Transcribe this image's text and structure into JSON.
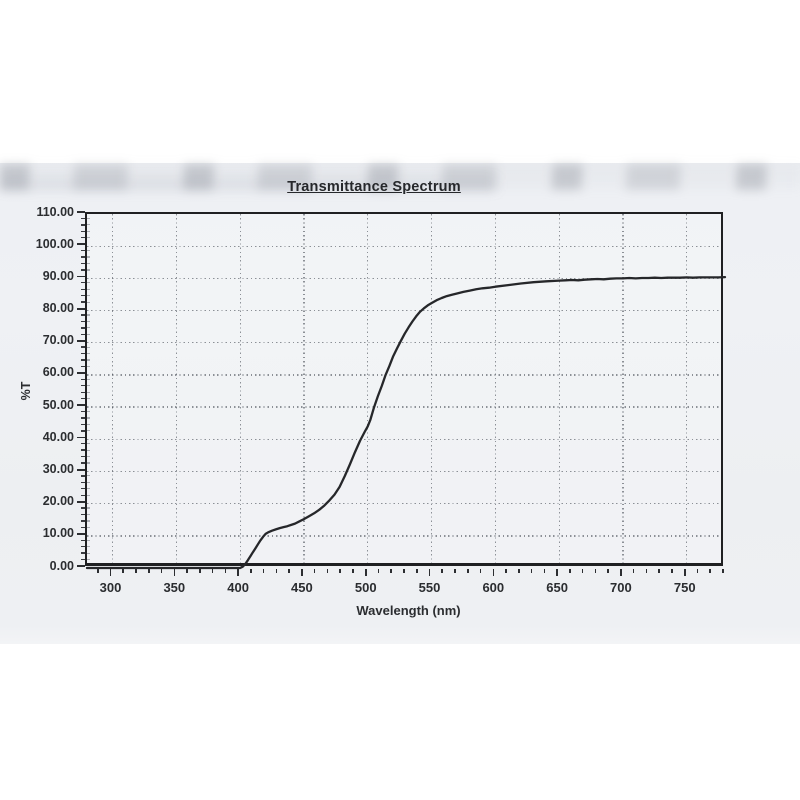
{
  "page": {
    "background": "#ffffff",
    "paper_color": "#eef0f3",
    "ink_color": "#2b2d30",
    "grid_color": "#82868d",
    "frame_color": "#1f2022",
    "curve_color": "#26272a"
  },
  "chart_data": {
    "type": "line",
    "title": "Transmittance Spectrum",
    "xlabel": "Wavelength (nm)",
    "ylabel": "%T",
    "xlim": [
      280,
      780
    ],
    "ylim": [
      0,
      110
    ],
    "x_ticks_major": [
      300,
      350,
      400,
      450,
      500,
      550,
      600,
      650,
      700,
      750
    ],
    "x_tick_labels": [
      "300",
      "350",
      "400",
      "450",
      "500",
      "550",
      "600",
      "650",
      "700",
      "750"
    ],
    "x_minor_step": 10,
    "y_ticks_major": [
      0,
      10,
      20,
      30,
      40,
      50,
      60,
      70,
      80,
      90,
      100,
      110
    ],
    "y_tick_labels": [
      "0.00",
      "10.00",
      "20.00",
      "30.00",
      "40.00",
      "50.00",
      "60.00",
      "70.00",
      "80.00",
      "90.00",
      "100.00",
      "110.00"
    ],
    "y_minor_step": 2,
    "grid": "dotted",
    "legend": "none",
    "series": [
      {
        "name": "%T",
        "points": [
          [
            280,
            0
          ],
          [
            300,
            0
          ],
          [
            320,
            0
          ],
          [
            340,
            0
          ],
          [
            360,
            0
          ],
          [
            380,
            0
          ],
          [
            395,
            0
          ],
          [
            400,
            0
          ],
          [
            402,
            0.4
          ],
          [
            404,
            1.2
          ],
          [
            406,
            2.4
          ],
          [
            408,
            3.6
          ],
          [
            410,
            4.9
          ],
          [
            412,
            6.1
          ],
          [
            414,
            7.4
          ],
          [
            416,
            8.6
          ],
          [
            418,
            9.7
          ],
          [
            420,
            10.6
          ],
          [
            422,
            11.1
          ],
          [
            425,
            11.6
          ],
          [
            428,
            12.0
          ],
          [
            431,
            12.4
          ],
          [
            434,
            12.7
          ],
          [
            437,
            13.0
          ],
          [
            440,
            13.4
          ],
          [
            443,
            13.8
          ],
          [
            446,
            14.4
          ],
          [
            450,
            15.2
          ],
          [
            454,
            16.1
          ],
          [
            458,
            17.0
          ],
          [
            462,
            18.1
          ],
          [
            466,
            19.4
          ],
          [
            470,
            21.0
          ],
          [
            474,
            22.8
          ],
          [
            478,
            25.2
          ],
          [
            482,
            28.6
          ],
          [
            486,
            32.2
          ],
          [
            490,
            36.0
          ],
          [
            494,
            39.6
          ],
          [
            498,
            42.6
          ],
          [
            500,
            44.0
          ],
          [
            502,
            46.0
          ],
          [
            505,
            50.0
          ],
          [
            508,
            53.4
          ],
          [
            511,
            56.6
          ],
          [
            514,
            60.0
          ],
          [
            517,
            62.8
          ],
          [
            520,
            65.8
          ],
          [
            523,
            68.3
          ],
          [
            526,
            70.6
          ],
          [
            529,
            72.8
          ],
          [
            532,
            74.8
          ],
          [
            535,
            76.6
          ],
          [
            538,
            78.2
          ],
          [
            541,
            79.6
          ],
          [
            544,
            80.7
          ],
          [
            547,
            81.6
          ],
          [
            550,
            82.3
          ],
          [
            554,
            83.2
          ],
          [
            558,
            83.9
          ],
          [
            562,
            84.5
          ],
          [
            566,
            84.9
          ],
          [
            570,
            85.3
          ],
          [
            575,
            85.8
          ],
          [
            580,
            86.2
          ],
          [
            585,
            86.6
          ],
          [
            590,
            86.9
          ],
          [
            595,
            87.1
          ],
          [
            600,
            87.4
          ],
          [
            610,
            87.9
          ],
          [
            620,
            88.4
          ],
          [
            630,
            88.8
          ],
          [
            640,
            89.1
          ],
          [
            650,
            89.3
          ],
          [
            655,
            89.4
          ],
          [
            660,
            89.5
          ],
          [
            665,
            89.4
          ],
          [
            670,
            89.6
          ],
          [
            675,
            89.7
          ],
          [
            680,
            89.8
          ],
          [
            685,
            89.7
          ],
          [
            690,
            89.9
          ],
          [
            695,
            90.0
          ],
          [
            700,
            90.0
          ],
          [
            705,
            90.1
          ],
          [
            710,
            90.0
          ],
          [
            715,
            90.1
          ],
          [
            720,
            90.1
          ],
          [
            725,
            90.2
          ],
          [
            730,
            90.1
          ],
          [
            735,
            90.2
          ],
          [
            740,
            90.2
          ],
          [
            745,
            90.2
          ],
          [
            750,
            90.3
          ],
          [
            755,
            90.2
          ],
          [
            760,
            90.3
          ],
          [
            765,
            90.3
          ],
          [
            770,
            90.3
          ],
          [
            775,
            90.3
          ],
          [
            780,
            90.4
          ]
        ]
      }
    ]
  }
}
